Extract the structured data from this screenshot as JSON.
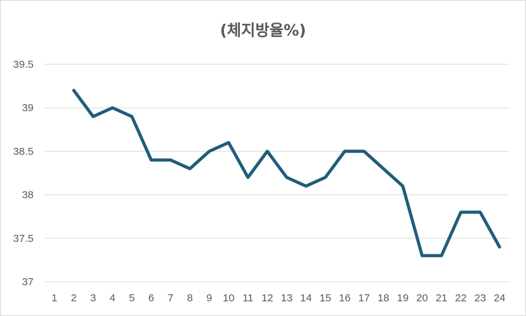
{
  "chart_data": {
    "type": "line",
    "title": "(체지방율%)",
    "xlabel": "",
    "ylabel": "",
    "categories": [
      "1",
      "2",
      "3",
      "4",
      "5",
      "6",
      "7",
      "8",
      "9",
      "10",
      "11",
      "12",
      "13",
      "14",
      "15",
      "16",
      "17",
      "18",
      "19",
      "20",
      "21",
      "22",
      "23",
      "24"
    ],
    "series": [
      {
        "values": [
          null,
          39.2,
          38.9,
          39.0,
          38.9,
          38.4,
          38.4,
          38.3,
          38.5,
          38.6,
          38.2,
          38.5,
          38.2,
          38.1,
          38.2,
          38.5,
          38.5,
          38.3,
          38.1,
          37.3,
          37.3,
          37.8,
          37.8,
          37.4
        ],
        "color": "#1f5c7a"
      }
    ],
    "ylim": [
      37,
      39.5
    ],
    "yticks": [
      "37",
      "37.5",
      "38",
      "38.5",
      "39",
      "39.5"
    ],
    "grid": true,
    "legend": "none"
  }
}
